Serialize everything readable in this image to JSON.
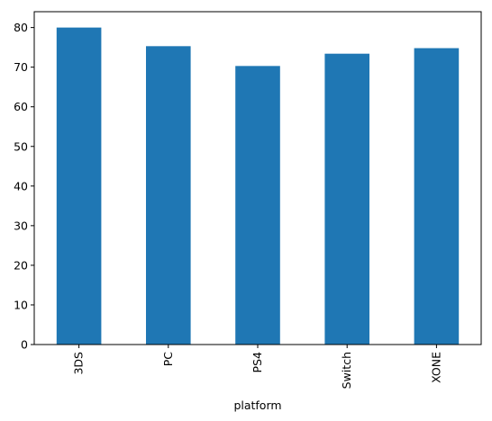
{
  "chart_data": {
    "type": "bar",
    "categories": [
      "3DS",
      "PC",
      "PS4",
      "Switch",
      "XONE"
    ],
    "values": [
      80.0,
      75.3,
      70.3,
      73.4,
      74.8
    ],
    "title": "",
    "xlabel": "platform",
    "ylabel": "",
    "ylim": [
      0,
      84
    ],
    "yticks": [
      0,
      10,
      20,
      30,
      40,
      50,
      60,
      70,
      80
    ],
    "bar_color": "#1f77b4",
    "grid": false,
    "legend": "none"
  }
}
